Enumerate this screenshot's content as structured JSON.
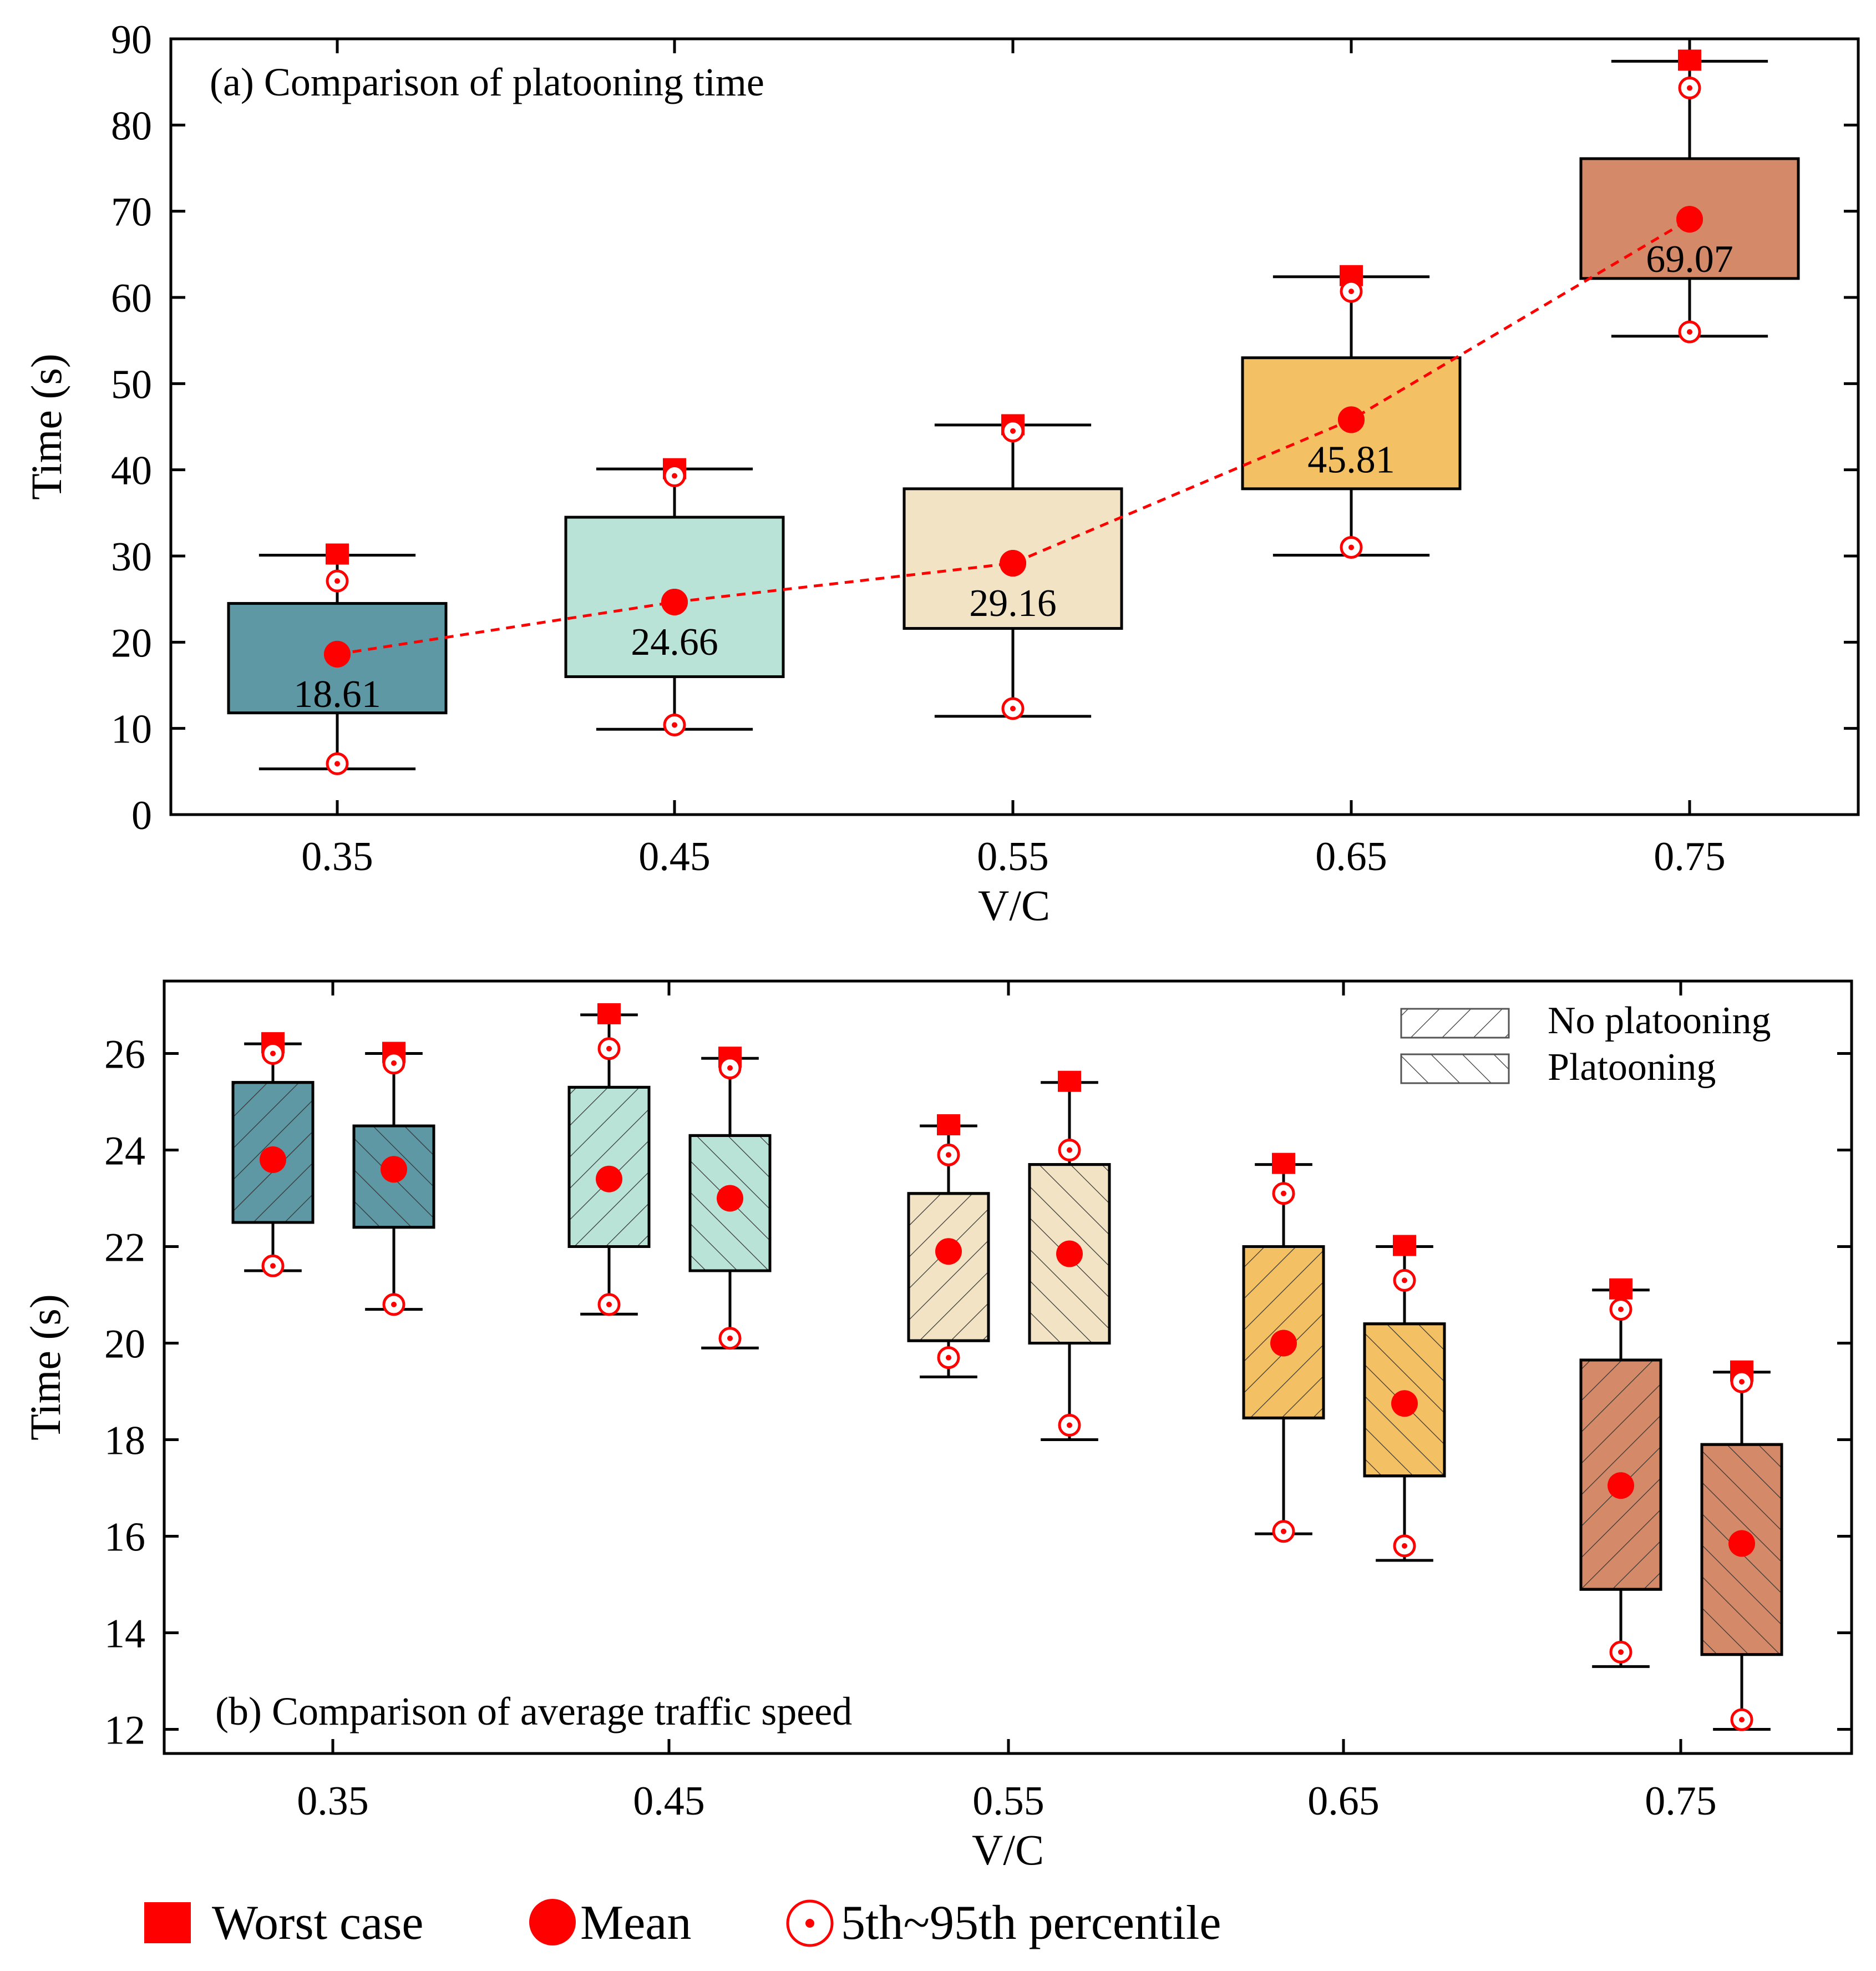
{
  "chart_data": [
    {
      "id": "a",
      "type": "box",
      "title": "(a) Comparison of platooning time",
      "xlabel": "V/C",
      "ylabel": "Time (s)",
      "ylim": [
        0,
        90
      ],
      "yticks": [
        "0",
        "10",
        "20",
        "30",
        "40",
        "50",
        "60",
        "70",
        "80",
        "90"
      ],
      "categories": [
        "0.35",
        "0.45",
        "0.55",
        "0.65",
        "0.75"
      ],
      "colors": [
        "#5e98a4",
        "#b9e3d7",
        "#f2e3c4",
        "#f3c064",
        "#d48a69"
      ],
      "boxes": [
        {
          "q1": 11.8,
          "q3": 24.5,
          "whisker_low": 5.3,
          "whisker_high": 30.1,
          "p5": 5.9,
          "p95": 27.1,
          "worst": 30.1,
          "mean": 18.61
        },
        {
          "q1": 16.0,
          "q3": 34.5,
          "whisker_low": 9.9,
          "whisker_high": 40.1,
          "p5": 10.4,
          "p95": 39.3,
          "worst": 40.0,
          "mean": 24.66
        },
        {
          "q1": 21.6,
          "q3": 37.8,
          "whisker_low": 11.4,
          "whisker_high": 45.2,
          "p5": 12.3,
          "p95": 44.5,
          "worst": 45.1,
          "mean": 29.16
        },
        {
          "q1": 37.8,
          "q3": 53.0,
          "whisker_low": 30.1,
          "whisker_high": 62.4,
          "p5": 31.0,
          "p95": 60.7,
          "worst": 62.4,
          "mean": 45.81
        },
        {
          "q1": 62.2,
          "q3": 76.1,
          "whisker_low": 55.5,
          "whisker_high": 87.4,
          "p5": 56.0,
          "p95": 84.3,
          "worst": 87.4,
          "mean": 69.07
        }
      ],
      "mean_labels": [
        "18.61",
        "24.66",
        "29.16",
        "45.81",
        "69.07"
      ]
    },
    {
      "id": "b",
      "type": "box",
      "title": "(b) Comparison of average traffic speed",
      "xlabel": "V/C",
      "ylabel": "Time (s)",
      "ylim": [
        11.5,
        27.5
      ],
      "yticks": [
        "12",
        "14",
        "16",
        "18",
        "20",
        "22",
        "24",
        "26"
      ],
      "categories": [
        "0.35",
        "0.45",
        "0.55",
        "0.65",
        "0.75"
      ],
      "colors": [
        "#5e98a4",
        "#b9e3d7",
        "#f2e3c4",
        "#f3c064",
        "#d48a69"
      ],
      "legend": {
        "position": "top-right",
        "entries": [
          "No platooning",
          "Platooning"
        ]
      },
      "series": [
        {
          "name": "No platooning",
          "boxes": [
            {
              "q1": 22.5,
              "q3": 25.4,
              "whisker_low": 21.5,
              "whisker_high": 26.2,
              "p5": 21.6,
              "p95": 26.0,
              "worst": 26.2,
              "mean": 23.8
            },
            {
              "q1": 22.0,
              "q3": 25.3,
              "whisker_low": 20.6,
              "whisker_high": 26.8,
              "p5": 20.8,
              "p95": 26.1,
              "worst": 26.8,
              "mean": 23.4
            },
            {
              "q1": 20.05,
              "q3": 23.1,
              "whisker_low": 19.3,
              "whisker_high": 24.5,
              "p5": 19.7,
              "p95": 23.9,
              "worst": 24.5,
              "mean": 21.9
            },
            {
              "q1": 18.45,
              "q3": 22.0,
              "whisker_low": 16.05,
              "whisker_high": 23.7,
              "p5": 16.1,
              "p95": 23.1,
              "worst": 23.7,
              "mean": 20.0
            },
            {
              "q1": 14.9,
              "q3": 19.65,
              "whisker_low": 13.3,
              "whisker_high": 21.1,
              "p5": 13.6,
              "p95": 20.7,
              "worst": 21.1,
              "mean": 17.05
            }
          ]
        },
        {
          "name": "Platooning",
          "boxes": [
            {
              "q1": 22.4,
              "q3": 24.5,
              "whisker_low": 20.7,
              "whisker_high": 26.0,
              "p5": 20.8,
              "p95": 25.8,
              "worst": 26.0,
              "mean": 23.6
            },
            {
              "q1": 21.5,
              "q3": 24.3,
              "whisker_low": 19.9,
              "whisker_high": 25.9,
              "p5": 20.1,
              "p95": 25.7,
              "worst": 25.9,
              "mean": 23.0
            },
            {
              "q1": 20.0,
              "q3": 23.7,
              "whisker_low": 18.0,
              "whisker_high": 25.4,
              "p5": 18.3,
              "p95": 24.0,
              "worst": 25.4,
              "mean": 21.85
            },
            {
              "q1": 17.25,
              "q3": 20.4,
              "whisker_low": 15.5,
              "whisker_high": 22.0,
              "p5": 15.8,
              "p95": 21.3,
              "worst": 22.0,
              "mean": 18.75
            },
            {
              "q1": 13.55,
              "q3": 17.9,
              "whisker_low": 12.0,
              "whisker_high": 19.4,
              "p5": 12.2,
              "p95": 19.2,
              "worst": 19.4,
              "mean": 15.85
            }
          ]
        }
      ]
    }
  ],
  "legend": {
    "worst": "Worst case",
    "mean": "Mean",
    "percentile": "5th~95th percentile"
  },
  "marker_color": "#ff0000"
}
